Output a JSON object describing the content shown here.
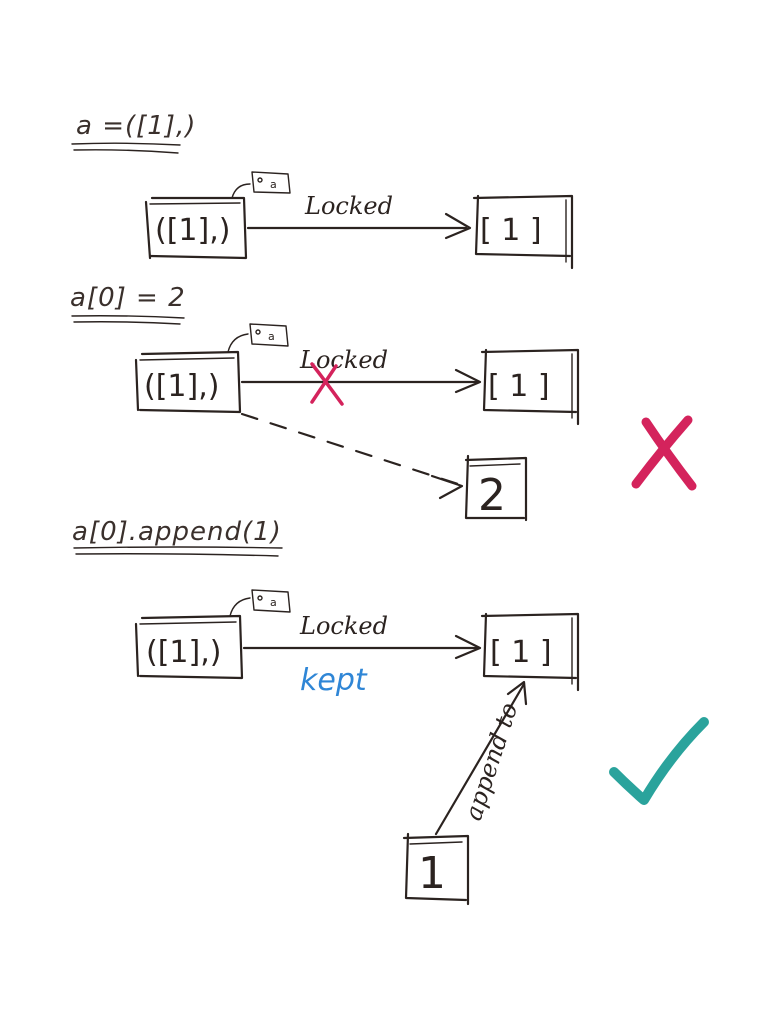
{
  "colors": {
    "ink": "#2b2320",
    "cross": "#d4235c",
    "kept": "#2f86d6",
    "check": "#2aa39c"
  },
  "scenes": [
    {
      "code": "a =([1],)",
      "tuple_label": "([1],)",
      "tag_label": "a",
      "arrow_label": "Locked",
      "target_label": "[ 1 ]"
    },
    {
      "code": "a[0] = 2",
      "tuple_label": "([1],)",
      "tag_label": "a",
      "arrow_label": "Locked",
      "target_label": "[ 1 ]",
      "new_value": "2",
      "result_icon": "cross-icon"
    },
    {
      "code": "a[0].append(1)",
      "tuple_label": "([1],)",
      "tag_label": "a",
      "arrow_label": "Locked",
      "kept_label": "kept",
      "target_label": "[ 1 ]",
      "append_label": "append to",
      "new_value": "1",
      "result_icon": "check-icon"
    }
  ]
}
